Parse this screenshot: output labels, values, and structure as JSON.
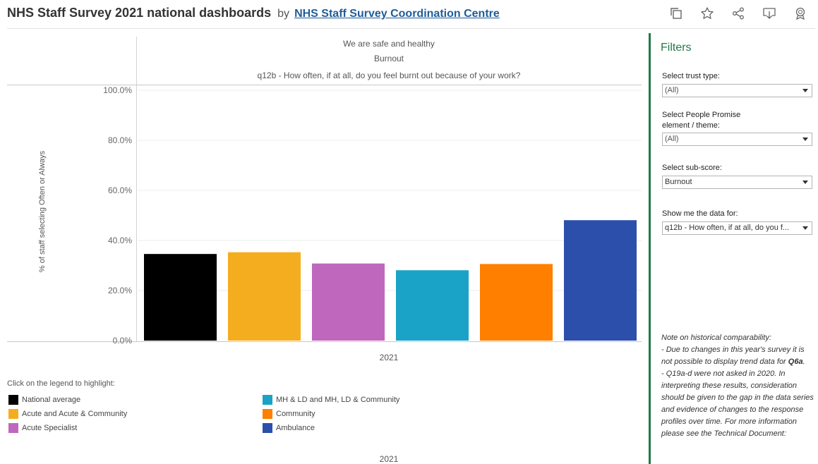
{
  "header": {
    "title": "NHS Staff Survey 2021 national dashboards",
    "by": "by",
    "author_link": "NHS Staff Survey Coordination Centre",
    "actions": [
      "duplicate-icon",
      "star-icon",
      "share-icon",
      "download-icon",
      "badge-icon"
    ]
  },
  "chart": {
    "theme": "We are safe and healthy",
    "subscore": "Burnout",
    "question": "q12b - How often, if at all, do you feel burnt out because of your work?",
    "y_axis_title": "% of staff selecting Often or Always",
    "x_tick": "2021",
    "x_tick_bottom": "2021"
  },
  "chart_data": {
    "type": "bar",
    "categories": [
      "National average",
      "Acute and Acute & Community",
      "Acute Specialist",
      "MH & LD and MH, LD & Community",
      "Community",
      "Ambulance"
    ],
    "values": [
      34.6,
      35.3,
      30.8,
      28.1,
      30.6,
      48.1
    ],
    "colors": [
      "#000000",
      "#f5ad20",
      "#bf67bd",
      "#1aa3c6",
      "#ff7f00",
      "#2b4fab"
    ],
    "yticks": [
      "0.0%",
      "20.0%",
      "40.0%",
      "60.0%",
      "80.0%",
      "100.0%"
    ],
    "ylim": [
      0,
      100
    ],
    "xlabel": "2021",
    "ylabel": "% of staff selecting Often or Always",
    "grid": true
  },
  "legend": {
    "title": "Click on the legend to highlight:",
    "items": [
      {
        "label": "National average",
        "color": "#000000"
      },
      {
        "label": "Acute and Acute & Community",
        "color": "#f5ad20"
      },
      {
        "label": "Acute Specialist",
        "color": "#bf67bd"
      },
      {
        "label": "MH & LD and MH, LD & Community",
        "color": "#1aa3c6"
      },
      {
        "label": "Community",
        "color": "#ff7f00"
      },
      {
        "label": "Ambulance",
        "color": "#2b4fab"
      }
    ]
  },
  "filters": {
    "title": "Filters",
    "trust_type": {
      "label": "Select trust type:",
      "value": "(All)"
    },
    "promise": {
      "label": "Select People Promise element / theme:",
      "value": "(All)"
    },
    "subscore": {
      "label": "Select sub-score:",
      "value": "Burnout"
    },
    "data_for": {
      "label": "Show me the data for:",
      "value": "q12b - How often, if at all, do you f..."
    }
  },
  "note": {
    "heading": "Note on historical comparability:",
    "line1": "- Due to changes in this year's survey it is not possible to display trend data for",
    "line1_bold": "Q6a",
    "line1_end": ".",
    "line2_bold": "- Q19a-d",
    "line2": " were not asked in 2020. In interpreting these results, consideration should be given to the gap in the data series and evidence of changes to the response profiles over time. For more information please see the Technical Document:"
  },
  "accent_color": "#1f7a4a"
}
